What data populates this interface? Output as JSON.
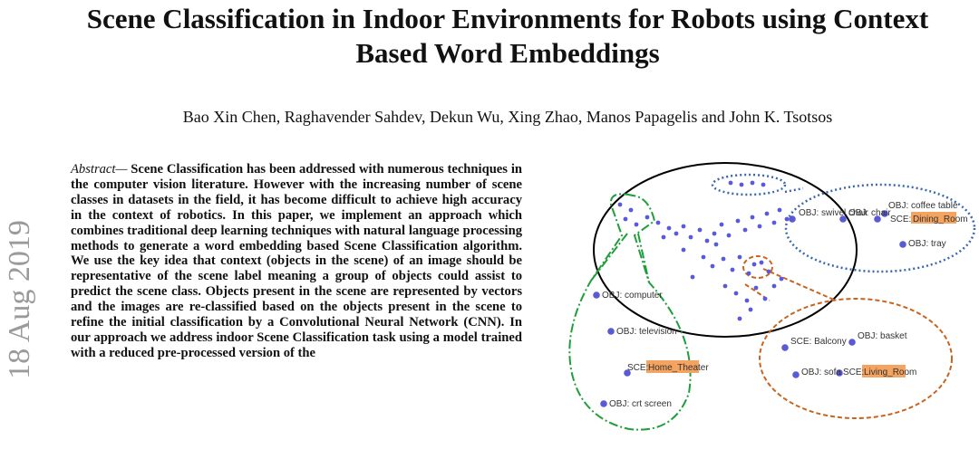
{
  "paper": {
    "title_line1": "Scene Classification in Indoor Environments for Robots using Context",
    "title_line2": "Based Word Embeddings",
    "authors": "Bao Xin Chen, Raghavender Sahdev, Dekun Wu, Xing Zhao, Manos Papagelis and John K. Tsotsos",
    "arxiv_stamp": "18 Aug 2019",
    "abstract_lead": "Abstract—",
    "abstract_body": "Scene Classification has been addressed with numerous techniques in the computer vision literature. However with the increasing number of scene classes in datasets in the field, it has become difficult to achieve high accuracy in the context of robotics. In this paper, we implement an approach which combines traditional deep learning techniques with natural language processing methods to generate a word embedding based Scene Classification algorithm. We use the key idea that context (objects in the scene) of an image should be representative of the scene label meaning a group of objects could assist to predict the scene class. Objects present in the scene are represented by vectors and the images are re-classified based on the objects present in the scene to refine the initial classification by a Convolutional Neural Network (CNN). In our approach we address indoor Scene Classification task using a model trained with a reduced pre-processed version of the"
  },
  "figure": {
    "colors": {
      "point": "#5a5ad6",
      "green": "#1e9e3a",
      "blue": "#3a68b0",
      "orange": "#c8641e",
      "highlight": "#f4a460"
    },
    "green_callout": {
      "labels": [
        "OBJ: computer",
        "OBJ: television",
        "SCE:",
        "Home_Theater",
        "OBJ: crt screen"
      ]
    },
    "blue_callout": {
      "labels": [
        "OBJ: coffee table",
        "OBJ: swivel chair",
        "OBJ: chair",
        "SCE:",
        "Dining_Room",
        "OBJ: tray"
      ]
    },
    "orange_callout": {
      "labels": [
        "SCE: Balcony",
        "OBJ: basket",
        "OBJ: sofa",
        "SCE:",
        "Living_Room"
      ]
    }
  }
}
